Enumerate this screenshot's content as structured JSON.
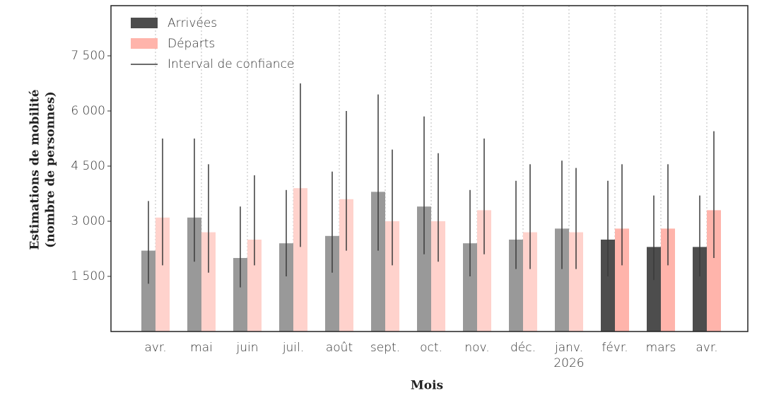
{
  "chart_data": {
    "type": "bar",
    "y_label": [
      "Estimations de mobilité",
      "(nombre de personnes)"
    ],
    "x_label": "Mois",
    "error_label": "Interval de confiance",
    "legend": "upper left",
    "grid": true,
    "categories": [
      "avr.",
      "mai",
      "juin",
      "juil.",
      "août",
      "sept.",
      "oct.",
      "nov.",
      "déc.",
      "janv. 2026",
      "févr.",
      "mars",
      "avr."
    ],
    "ylim": [
      0,
      8865
    ],
    "yticks": [
      {
        "value": 1500,
        "label": "1 500"
      },
      {
        "value": 3000,
        "label": "3 000"
      },
      {
        "value": 4500,
        "label": "4 500"
      },
      {
        "value": 6000,
        "label": "6 000"
      },
      {
        "value": 7500,
        "label": "7 500"
      }
    ],
    "error_color": "#3a3a3a",
    "series": [
      {
        "name": "Arrivées",
        "color": "#4d4d4d",
        "colors": [
          "#999999",
          "#999999",
          "#999999",
          "#999999",
          "#999999",
          "#999999",
          "#999999",
          "#999999",
          "#999999",
          "#999999",
          "#4d4d4d",
          "#4d4d4d",
          "#4d4d4d"
        ],
        "values": [
          2200,
          3100,
          2000,
          2400,
          2600,
          3800,
          3400,
          2400,
          2500,
          2800,
          2500,
          2300,
          2300
        ],
        "ci": [
          [
            1300,
            3550
          ],
          [
            1900,
            5250
          ],
          [
            1200,
            3400
          ],
          [
            1500,
            3850
          ],
          [
            1600,
            4350
          ],
          [
            2200,
            6450
          ],
          [
            2100,
            5850
          ],
          [
            1500,
            3850
          ],
          [
            1700,
            4100
          ],
          [
            1700,
            4650
          ],
          [
            1500,
            4100
          ],
          [
            1400,
            3700
          ],
          [
            1500,
            3700
          ]
        ]
      },
      {
        "name": "Départs",
        "color": "#ffb4ab",
        "colors": [
          "#ffd2cc",
          "#ffd2cc",
          "#ffd2cc",
          "#ffd2cc",
          "#ffd2cc",
          "#ffd2cc",
          "#ffd2cc",
          "#ffd2cc",
          "#ffd2cc",
          "#ffd2cc",
          "#ffb4ab",
          "#ffb4ab",
          "#ffb4ab"
        ],
        "values": [
          3100,
          2700,
          2500,
          3900,
          3600,
          3000,
          3000,
          3300,
          2700,
          2700,
          2800,
          2800,
          3300
        ],
        "ci": [
          [
            1800,
            5250
          ],
          [
            1600,
            4550
          ],
          [
            1800,
            4250
          ],
          [
            2300,
            6750
          ],
          [
            2200,
            6000
          ],
          [
            1800,
            4950
          ],
          [
            1900,
            4850
          ],
          [
            2100,
            5250
          ],
          [
            1700,
            4550
          ],
          [
            1700,
            4450
          ],
          [
            1800,
            4550
          ],
          [
            1800,
            4550
          ],
          [
            2000,
            5450
          ]
        ]
      }
    ]
  }
}
